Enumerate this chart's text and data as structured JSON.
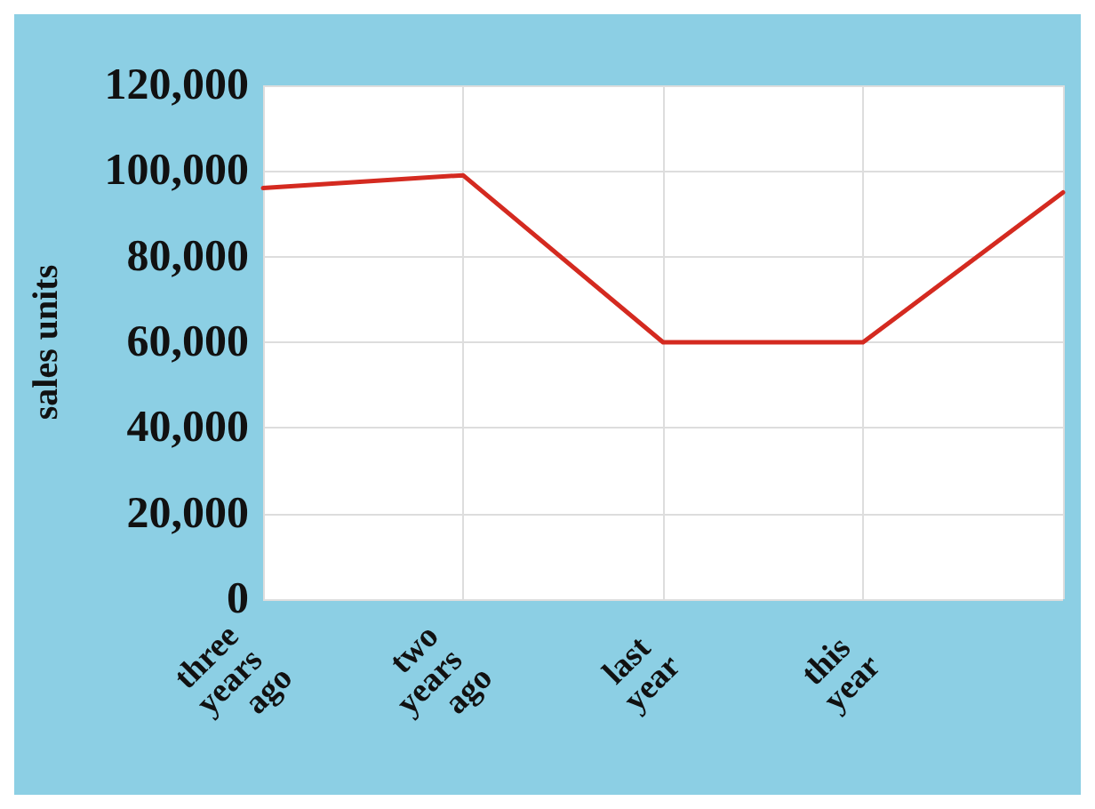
{
  "chart_data": {
    "type": "line",
    "ylabel": "sales units",
    "categories": [
      "three years ago",
      "two years ago",
      "last year",
      "this year",
      null
    ],
    "series": [
      {
        "color": "#d42a20",
        "values": [
          96000,
          99000,
          60000,
          60000,
          95000
        ]
      }
    ],
    "ylim": [
      0,
      120000
    ],
    "yticks": [
      {
        "value": 0,
        "label": "0"
      },
      {
        "value": 20000,
        "label": "20,000"
      },
      {
        "value": 40000,
        "label": "40,000"
      },
      {
        "value": 60000,
        "label": "60,000"
      },
      {
        "value": 80000,
        "label": "80,000"
      },
      {
        "value": 100000,
        "label": "100,000"
      },
      {
        "value": 120000,
        "label": "120,000"
      }
    ],
    "grid": true,
    "marker": "none",
    "line_style": "solid"
  }
}
